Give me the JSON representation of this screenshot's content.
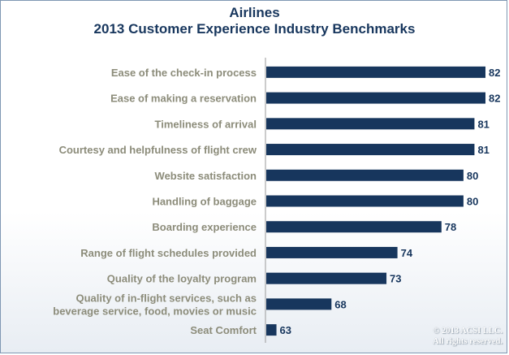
{
  "chart_data": {
    "type": "bar",
    "orientation": "horizontal",
    "title": "Airlines",
    "subtitle": "2013 Customer Experience Industry Benchmarks",
    "categories": [
      "Ease of the check-in process",
      "Ease of making a reservation",
      "Timeliness of arrival",
      "Courtesy and helpfulness of flight crew",
      "Website satisfaction",
      "Handling of baggage",
      "Boarding experience",
      "Range of flight schedules provided",
      "Quality of the loyalty program",
      "Quality of in-flight services, such as beverage service, food, movies or music",
      "Seat Comfort"
    ],
    "category_lines": [
      [
        "Ease of the check-in process"
      ],
      [
        "Ease of making a reservation"
      ],
      [
        "Timeliness of arrival"
      ],
      [
        "Courtesy and helpfulness of flight crew"
      ],
      [
        "Website satisfaction"
      ],
      [
        "Handling of baggage"
      ],
      [
        "Boarding experience"
      ],
      [
        "Range of flight schedules provided"
      ],
      [
        "Quality of the loyalty program"
      ],
      [
        "Quality of in-flight services, such as",
        "beverage service, food, movies or music"
      ],
      [
        "Seat Comfort"
      ]
    ],
    "values": [
      82,
      82,
      81,
      81,
      80,
      80,
      78,
      74,
      73,
      68,
      63
    ],
    "xlim": [
      62,
      82
    ],
    "grid": false,
    "data_labels": true,
    "bar_color": "#17365d",
    "label_color": "#8c8c7a"
  },
  "copyright": {
    "line1": "© 2013 ACSI LLC.",
    "line2": "All rights reserved."
  }
}
